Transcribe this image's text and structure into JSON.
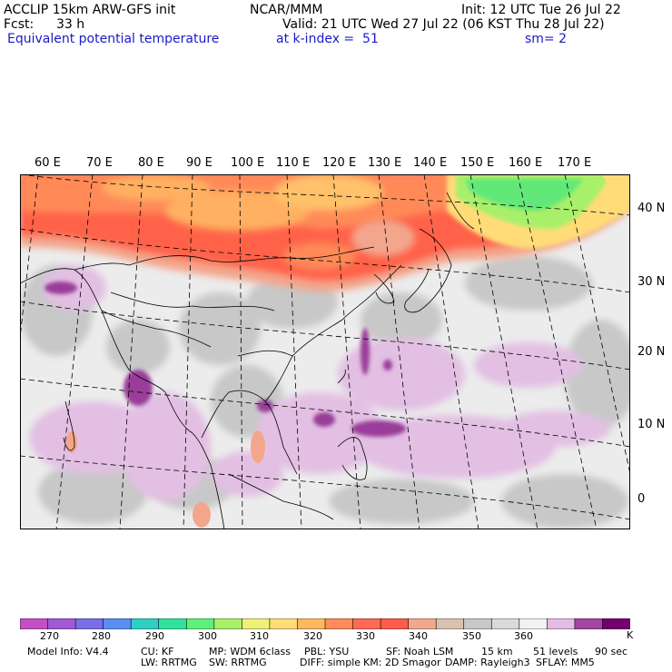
{
  "header": {
    "model": "ACCLIP 15km ARW-GFS init",
    "org": "NCAR/MMM",
    "init": "Init: 12 UTC Tue 26 Jul 22",
    "fcst_label": "Fcst:",
    "fcst_value": "33 h",
    "valid": "Valid: 21 UTC Wed 27 Jul 22 (06 KST Thu 28 Jul 22)",
    "field": "Equivalent potential temperature",
    "level": "at k-index =  51",
    "smoothing": "sm= 2"
  },
  "map": {
    "lon_labels": [
      "60 E",
      "70 E",
      "80 E",
      "90 E",
      "100 E",
      "110 E",
      "120 E",
      "130 E",
      "140 E",
      "150 E",
      "160 E",
      "170 E"
    ],
    "lat_labels": [
      "40 N",
      "30 N",
      "20 N",
      "10 N",
      "0"
    ]
  },
  "colorbar": {
    "colors": [
      "#c44fc4",
      "#a05ad6",
      "#7a6ee6",
      "#5a8ef0",
      "#2ecfc4",
      "#30e39a",
      "#5ef07a",
      "#a8f06a",
      "#eef07a",
      "#ffdc78",
      "#ffb860",
      "#ff8c5a",
      "#ff6a50",
      "#ff5a4a",
      "#f2a88c",
      "#d9c2b0",
      "#c8c8c8",
      "#dadada",
      "#f2f2f2",
      "#e4bce4",
      "#a346a3",
      "#73006e"
    ],
    "labels": [
      "270",
      "280",
      "290",
      "300",
      "310",
      "320",
      "330",
      "340",
      "350",
      "360"
    ],
    "unit": "K"
  },
  "footer": {
    "line1": [
      "Model Info: V4.4",
      "CU: KF",
      "MP: WDM 6class",
      "PBL: YSU",
      "SF: Noah LSM",
      "15 km",
      "51 levels",
      "90 sec"
    ],
    "line2": [
      "LW: RRTMG",
      "SW: RRTMG",
      "DIFF: simple",
      "KM: 2D Smagor",
      "DAMP: Rayleigh3",
      "SFLAY: MM5"
    ]
  }
}
